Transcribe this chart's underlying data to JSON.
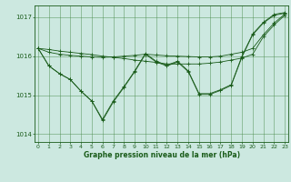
{
  "bg_color": "#cce8e0",
  "grid_color": "#4a8a4a",
  "line_color": "#1a5c1a",
  "ylim": [
    1013.8,
    1017.3
  ],
  "yticks": [
    1014,
    1015,
    1016,
    1017
  ],
  "xlim": [
    -0.3,
    23.3
  ],
  "xticks": [
    0,
    1,
    2,
    3,
    4,
    5,
    6,
    7,
    8,
    9,
    10,
    11,
    12,
    13,
    14,
    15,
    16,
    17,
    18,
    19,
    20,
    21,
    22,
    23
  ],
  "xlabel": "Graphe pression niveau de la mer (hPa)",
  "series": [
    [
      1016.2,
      1016.17,
      1016.13,
      1016.1,
      1016.07,
      1016.04,
      1016.0,
      1015.97,
      1015.94,
      1015.9,
      1015.87,
      1015.84,
      1015.8,
      1015.8,
      1015.8,
      1015.8,
      1015.82,
      1015.85,
      1015.9,
      1015.95,
      1016.05,
      1016.5,
      1016.8,
      1017.05
    ],
    [
      1016.2,
      1015.75,
      1015.55,
      1015.4,
      1015.1,
      1014.85,
      1014.35,
      1014.82,
      1015.2,
      1015.6,
      1016.05,
      1015.85,
      1015.75,
      1015.85,
      1015.6,
      1015.02,
      1015.02,
      1015.12,
      1015.25,
      1015.98,
      1016.55,
      1016.85,
      1017.05,
      1017.1
    ],
    [
      1016.2,
      1015.75,
      1015.55,
      1015.4,
      1015.1,
      1014.85,
      1014.38,
      1014.85,
      1015.22,
      1015.62,
      1016.07,
      1015.87,
      1015.77,
      1015.87,
      1015.62,
      1015.04,
      1015.04,
      1015.14,
      1015.27,
      1016.0,
      1016.57,
      1016.87,
      1017.07,
      1017.12
    ],
    [
      1016.2,
      1016.1,
      1016.05,
      1016.02,
      1016.0,
      1015.98,
      1015.97,
      1015.98,
      1016.0,
      1016.02,
      1016.05,
      1016.03,
      1016.01,
      1016.0,
      1015.99,
      1015.98,
      1015.98,
      1016.0,
      1016.05,
      1016.1,
      1016.2,
      1016.55,
      1016.85,
      1017.08
    ]
  ]
}
